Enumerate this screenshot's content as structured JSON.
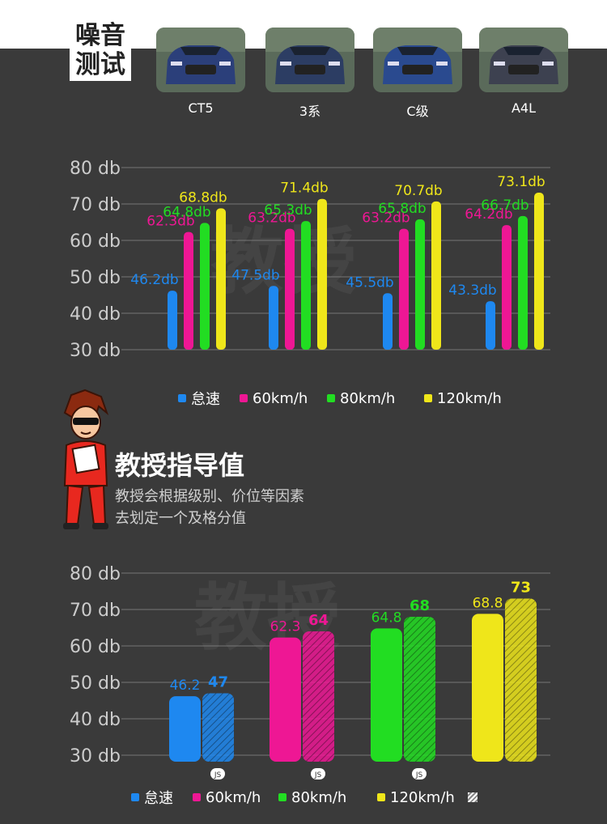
{
  "header": {
    "title_line1": "噪音",
    "title_line2": "测试"
  },
  "cars": [
    {
      "label": "CT5",
      "color": "#2b3f7a"
    },
    {
      "label": "3系",
      "color": "#2c3d63"
    },
    {
      "label": "C级",
      "color": "#2a4a8f"
    },
    {
      "label": "A4L",
      "color": "#3d4150"
    }
  ],
  "colors": {
    "idle": "#1e88f0",
    "s60": "#ee1794",
    "s80": "#22dd22",
    "s120": "#efe61a",
    "grid": "#777777",
    "axis_text": "#cccccc"
  },
  "legend1": [
    "怠速",
    "60km/h",
    "80km/h",
    "120km/h"
  ],
  "legend2": [
    "怠速",
    "60km/h",
    "80km/h",
    "120km/h"
  ],
  "section": {
    "title": "教授指导值",
    "desc_line1": "教授会根据级别、价位等因素",
    "desc_line2": "去划定一个及格分值"
  },
  "chart_data": [
    {
      "type": "bar",
      "title": "噪音测试",
      "categories": [
        "CT5",
        "3系",
        "C级",
        "A4L"
      ],
      "ylim": [
        30,
        80
      ],
      "yticks": [
        "30 db",
        "40 db",
        "50 db",
        "60 db",
        "70 db",
        "80 db"
      ],
      "series": [
        {
          "name": "怠速",
          "values": [
            46.2,
            47.5,
            45.5,
            43.3
          ],
          "labels": [
            "46.2db",
            "47.5db",
            "45.5db",
            "43.3db"
          ]
        },
        {
          "name": "60km/h",
          "values": [
            62.3,
            63.2,
            63.2,
            64.2
          ],
          "labels": [
            "62.3db",
            "63.2db",
            "63.2db",
            "64.2db"
          ]
        },
        {
          "name": "80km/h",
          "values": [
            64.8,
            65.3,
            65.8,
            66.7
          ],
          "labels": [
            "64.8db",
            "65.3db",
            "65.8db",
            "66.7db"
          ]
        },
        {
          "name": "120km/h",
          "values": [
            68.8,
            71.4,
            70.7,
            73.1
          ],
          "labels": [
            "68.8db",
            "71.4db",
            "70.7db",
            "73.1db"
          ]
        }
      ],
      "legend_position": "bottom"
    },
    {
      "type": "bar",
      "title": "教授指导值",
      "categories": [
        "怠速",
        "60km/h",
        "80km/h",
        "120km/h"
      ],
      "ylim": [
        30,
        80
      ],
      "yticks": [
        "30 db",
        "40 db",
        "50 db",
        "60 db",
        "70 db",
        "80 db"
      ],
      "measured": [
        46.2,
        62.3,
        64.8,
        68.8
      ],
      "measured_labels": [
        "46.2",
        "62.3",
        "64.8",
        "68.8"
      ],
      "guide": [
        47,
        64,
        68,
        73
      ],
      "guide_labels": [
        "47",
        "64",
        "68",
        "73"
      ],
      "badges": [
        "JS",
        "JS",
        "JS",
        ""
      ],
      "legend_position": "bottom"
    }
  ]
}
